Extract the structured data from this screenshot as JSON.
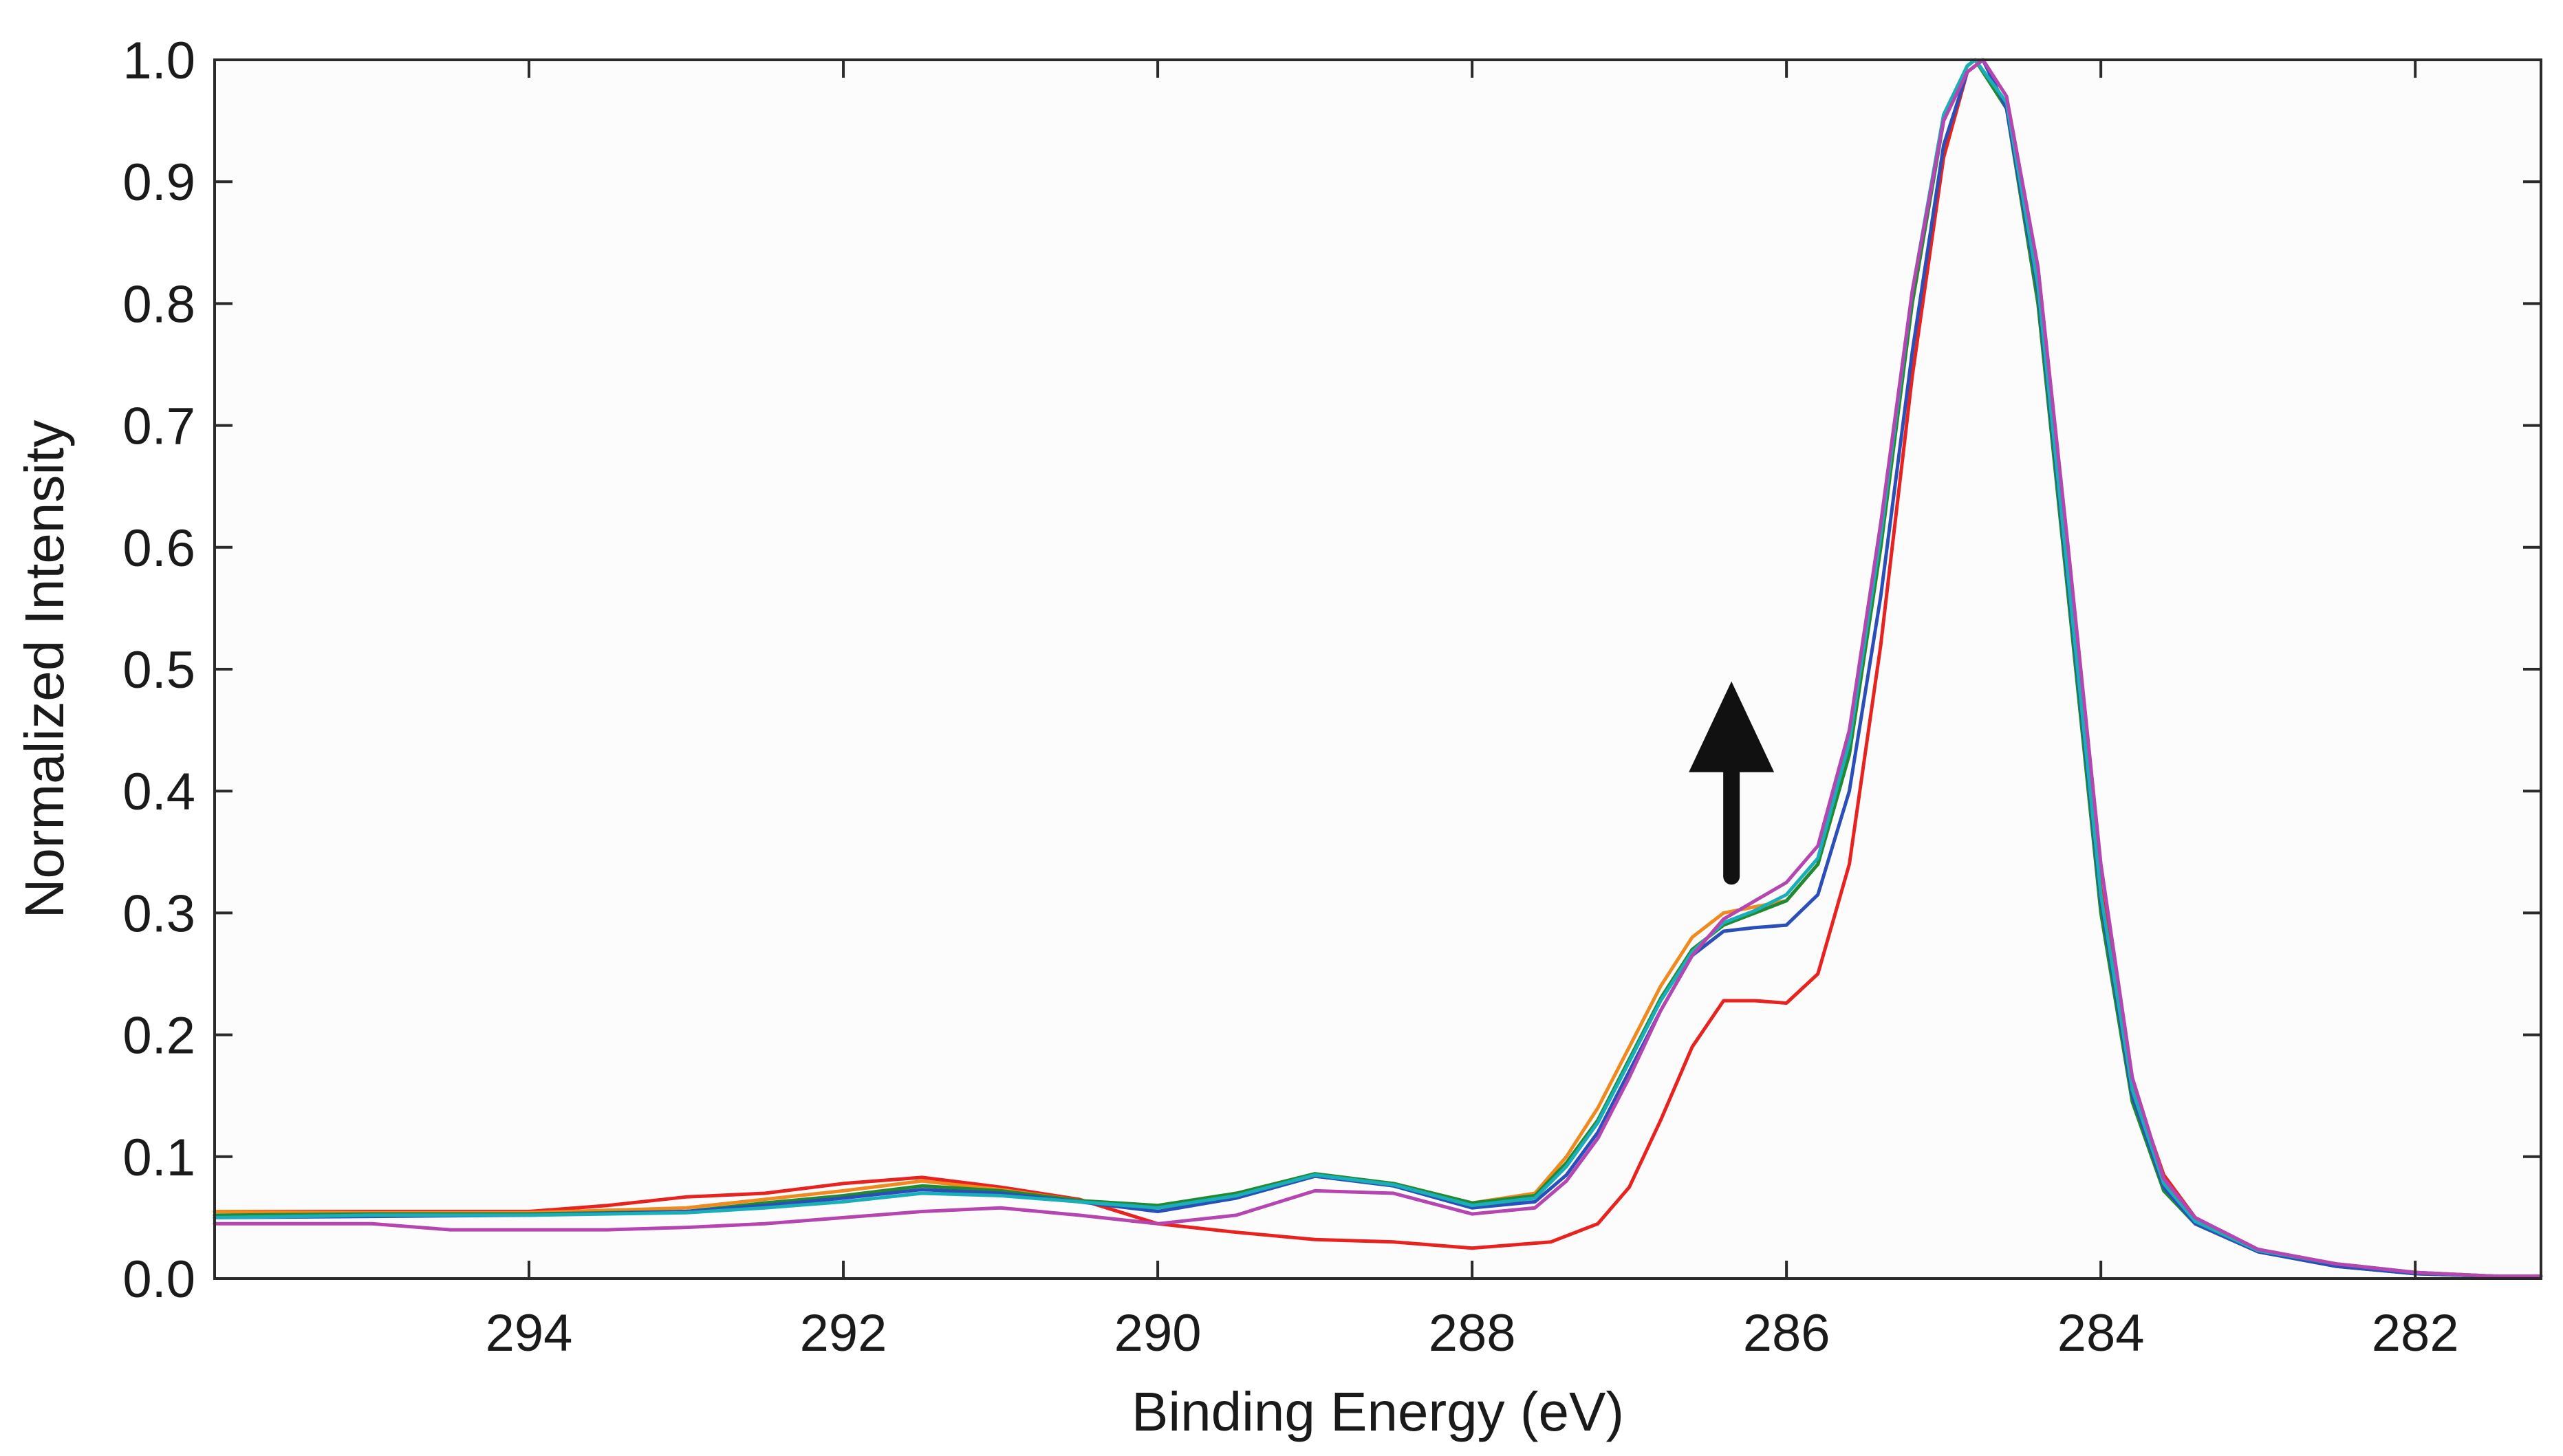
{
  "chart_data": {
    "type": "line",
    "title": "",
    "xlabel": "Binding Energy (eV)",
    "ylabel": "Normalized Intensity",
    "xlim": [
      296.0,
      281.2
    ],
    "ylim": [
      0.0,
      1.0
    ],
    "x_reversed": true,
    "grid": false,
    "legend": "none",
    "xticks": [
      294,
      292,
      290,
      288,
      286,
      284,
      282
    ],
    "xtick_labels": [
      "294",
      "292",
      "290",
      "288",
      "286",
      "284",
      "282"
    ],
    "yticks": [
      0.0,
      0.1,
      0.2,
      0.3,
      0.4,
      0.5,
      0.6,
      0.7,
      0.8,
      0.9,
      1.0
    ],
    "ytick_labels": [
      "0.0",
      "0.1",
      "0.2",
      "0.3",
      "0.4",
      "0.5",
      "0.6",
      "0.7",
      "0.8",
      "0.9",
      "1.0"
    ],
    "annotation": {
      "type": "arrow",
      "direction": "up",
      "x": 286.35,
      "y_from": 0.33,
      "y_to": 0.49
    },
    "series": [
      {
        "name": "red",
        "color": "#e8231f",
        "points": [
          [
            296.0,
            0.055
          ],
          [
            295,
            0.055
          ],
          [
            294,
            0.055
          ],
          [
            293.5,
            0.06
          ],
          [
            293,
            0.067
          ],
          [
            292.5,
            0.07
          ],
          [
            292,
            0.078
          ],
          [
            291.5,
            0.083
          ],
          [
            291,
            0.075
          ],
          [
            290.5,
            0.065
          ],
          [
            290,
            0.045
          ],
          [
            289.5,
            0.038
          ],
          [
            289,
            0.032
          ],
          [
            288.5,
            0.03
          ],
          [
            288.0,
            0.025
          ],
          [
            287.5,
            0.03
          ],
          [
            287.2,
            0.045
          ],
          [
            287.0,
            0.075
          ],
          [
            286.8,
            0.13
          ],
          [
            286.6,
            0.19
          ],
          [
            286.4,
            0.228
          ],
          [
            286.2,
            0.228
          ],
          [
            286.0,
            0.226
          ],
          [
            285.8,
            0.25
          ],
          [
            285.6,
            0.34
          ],
          [
            285.4,
            0.52
          ],
          [
            285.2,
            0.74
          ],
          [
            285.0,
            0.92
          ],
          [
            284.85,
            0.99
          ],
          [
            284.75,
            1.0
          ],
          [
            284.6,
            0.96
          ],
          [
            284.4,
            0.8
          ],
          [
            284.2,
            0.56
          ],
          [
            284.0,
            0.32
          ],
          [
            283.8,
            0.16
          ],
          [
            283.6,
            0.085
          ],
          [
            283.4,
            0.05
          ],
          [
            283.0,
            0.022
          ],
          [
            282.5,
            0.012
          ],
          [
            282.0,
            0.005
          ],
          [
            281.5,
            0.002
          ],
          [
            281.2,
            0.002
          ]
        ]
      },
      {
        "name": "orange",
        "color": "#f08a1e",
        "points": [
          [
            296.0,
            0.055
          ],
          [
            295,
            0.054
          ],
          [
            294,
            0.054
          ],
          [
            293,
            0.058
          ],
          [
            292.5,
            0.065
          ],
          [
            292,
            0.072
          ],
          [
            291.5,
            0.08
          ],
          [
            291,
            0.073
          ],
          [
            290.5,
            0.064
          ],
          [
            290,
            0.058
          ],
          [
            289.5,
            0.068
          ],
          [
            289,
            0.084
          ],
          [
            288.5,
            0.078
          ],
          [
            288.0,
            0.062
          ],
          [
            287.6,
            0.07
          ],
          [
            287.4,
            0.1
          ],
          [
            287.2,
            0.14
          ],
          [
            287.0,
            0.19
          ],
          [
            286.8,
            0.24
          ],
          [
            286.6,
            0.28
          ],
          [
            286.4,
            0.3
          ],
          [
            286.2,
            0.305
          ],
          [
            286.0,
            0.31
          ],
          [
            285.8,
            0.34
          ],
          [
            285.6,
            0.43
          ],
          [
            285.4,
            0.6
          ],
          [
            285.2,
            0.8
          ],
          [
            285.0,
            0.95
          ],
          [
            284.85,
            0.995
          ],
          [
            284.8,
            1.0
          ],
          [
            284.6,
            0.96
          ],
          [
            284.4,
            0.81
          ],
          [
            284.2,
            0.56
          ],
          [
            284.0,
            0.31
          ],
          [
            283.8,
            0.15
          ],
          [
            283.6,
            0.075
          ],
          [
            283.4,
            0.045
          ],
          [
            283.0,
            0.022
          ],
          [
            282.5,
            0.01
          ],
          [
            282.0,
            0.004
          ],
          [
            281.5,
            0.002
          ],
          [
            281.2,
            0.002
          ]
        ]
      },
      {
        "name": "green",
        "color": "#1f8a32",
        "points": [
          [
            296.0,
            0.052
          ],
          [
            295,
            0.053
          ],
          [
            294,
            0.053
          ],
          [
            293,
            0.055
          ],
          [
            292.5,
            0.062
          ],
          [
            292,
            0.068
          ],
          [
            291.5,
            0.076
          ],
          [
            291,
            0.072
          ],
          [
            290.5,
            0.064
          ],
          [
            290,
            0.06
          ],
          [
            289.5,
            0.07
          ],
          [
            289,
            0.086
          ],
          [
            288.5,
            0.078
          ],
          [
            288.0,
            0.062
          ],
          [
            287.6,
            0.068
          ],
          [
            287.4,
            0.095
          ],
          [
            287.2,
            0.13
          ],
          [
            287.0,
            0.18
          ],
          [
            286.8,
            0.23
          ],
          [
            286.6,
            0.27
          ],
          [
            286.4,
            0.29
          ],
          [
            286.2,
            0.3
          ],
          [
            286.0,
            0.31
          ],
          [
            285.8,
            0.34
          ],
          [
            285.6,
            0.43
          ],
          [
            285.4,
            0.6
          ],
          [
            285.2,
            0.8
          ],
          [
            285.0,
            0.95
          ],
          [
            284.85,
            0.995
          ],
          [
            284.8,
            1.0
          ],
          [
            284.6,
            0.96
          ],
          [
            284.4,
            0.8
          ],
          [
            284.2,
            0.55
          ],
          [
            284.0,
            0.3
          ],
          [
            283.8,
            0.145
          ],
          [
            283.6,
            0.072
          ],
          [
            283.4,
            0.045
          ],
          [
            283.0,
            0.022
          ],
          [
            282.5,
            0.01
          ],
          [
            282.0,
            0.004
          ],
          [
            281.5,
            0.002
          ],
          [
            281.2,
            0.002
          ]
        ]
      },
      {
        "name": "blue",
        "color": "#2a4fb8",
        "points": [
          [
            296.0,
            0.05
          ],
          [
            295,
            0.051
          ],
          [
            294,
            0.052
          ],
          [
            293,
            0.055
          ],
          [
            292.5,
            0.06
          ],
          [
            292,
            0.066
          ],
          [
            291.5,
            0.073
          ],
          [
            291,
            0.07
          ],
          [
            290.5,
            0.063
          ],
          [
            290,
            0.055
          ],
          [
            289.5,
            0.066
          ],
          [
            289,
            0.084
          ],
          [
            288.5,
            0.076
          ],
          [
            288.0,
            0.058
          ],
          [
            287.6,
            0.063
          ],
          [
            287.4,
            0.085
          ],
          [
            287.2,
            0.12
          ],
          [
            287.0,
            0.17
          ],
          [
            286.8,
            0.22
          ],
          [
            286.6,
            0.265
          ],
          [
            286.4,
            0.285
          ],
          [
            286.2,
            0.288
          ],
          [
            286.0,
            0.29
          ],
          [
            285.8,
            0.315
          ],
          [
            285.6,
            0.4
          ],
          [
            285.4,
            0.56
          ],
          [
            285.2,
            0.76
          ],
          [
            285.0,
            0.93
          ],
          [
            284.85,
            0.99
          ],
          [
            284.75,
            1.0
          ],
          [
            284.6,
            0.96
          ],
          [
            284.4,
            0.81
          ],
          [
            284.2,
            0.56
          ],
          [
            284.0,
            0.31
          ],
          [
            283.8,
            0.15
          ],
          [
            283.6,
            0.075
          ],
          [
            283.4,
            0.045
          ],
          [
            283.0,
            0.022
          ],
          [
            282.5,
            0.01
          ],
          [
            282.0,
            0.004
          ],
          [
            281.5,
            0.002
          ],
          [
            281.2,
            0.002
          ]
        ]
      },
      {
        "name": "teal",
        "color": "#1aaeb8",
        "points": [
          [
            296.0,
            0.05
          ],
          [
            295,
            0.052
          ],
          [
            294,
            0.052
          ],
          [
            293,
            0.054
          ],
          [
            292.5,
            0.058
          ],
          [
            292,
            0.063
          ],
          [
            291.5,
            0.07
          ],
          [
            291,
            0.068
          ],
          [
            290.5,
            0.063
          ],
          [
            290,
            0.058
          ],
          [
            289.5,
            0.068
          ],
          [
            289,
            0.085
          ],
          [
            288.5,
            0.077
          ],
          [
            288.0,
            0.06
          ],
          [
            287.6,
            0.066
          ],
          [
            287.4,
            0.092
          ],
          [
            287.2,
            0.128
          ],
          [
            287.0,
            0.178
          ],
          [
            286.8,
            0.228
          ],
          [
            286.6,
            0.268
          ],
          [
            286.4,
            0.292
          ],
          [
            286.2,
            0.302
          ],
          [
            286.0,
            0.315
          ],
          [
            285.8,
            0.345
          ],
          [
            285.6,
            0.44
          ],
          [
            285.4,
            0.61
          ],
          [
            285.2,
            0.81
          ],
          [
            285.0,
            0.955
          ],
          [
            284.85,
            0.995
          ],
          [
            284.8,
            1.0
          ],
          [
            284.6,
            0.965
          ],
          [
            284.4,
            0.815
          ],
          [
            284.2,
            0.565
          ],
          [
            284.0,
            0.315
          ],
          [
            283.8,
            0.155
          ],
          [
            283.6,
            0.078
          ],
          [
            283.4,
            0.047
          ],
          [
            283.0,
            0.023
          ],
          [
            282.5,
            0.012
          ],
          [
            282.0,
            0.005
          ],
          [
            281.5,
            0.002
          ],
          [
            281.2,
            0.002
          ]
        ]
      },
      {
        "name": "magenta",
        "color": "#b545b0",
        "points": [
          [
            296.0,
            0.045
          ],
          [
            295,
            0.045
          ],
          [
            294.5,
            0.04
          ],
          [
            294,
            0.04
          ],
          [
            293.5,
            0.04
          ],
          [
            293,
            0.042
          ],
          [
            292.5,
            0.045
          ],
          [
            292,
            0.05
          ],
          [
            291.5,
            0.055
          ],
          [
            291,
            0.058
          ],
          [
            290.5,
            0.052
          ],
          [
            290,
            0.045
          ],
          [
            289.5,
            0.052
          ],
          [
            289,
            0.072
          ],
          [
            288.5,
            0.07
          ],
          [
            288.0,
            0.053
          ],
          [
            287.6,
            0.058
          ],
          [
            287.4,
            0.08
          ],
          [
            287.2,
            0.115
          ],
          [
            287.0,
            0.165
          ],
          [
            286.8,
            0.22
          ],
          [
            286.6,
            0.265
          ],
          [
            286.4,
            0.295
          ],
          [
            286.2,
            0.31
          ],
          [
            286.0,
            0.325
          ],
          [
            285.8,
            0.355
          ],
          [
            285.6,
            0.45
          ],
          [
            285.4,
            0.62
          ],
          [
            285.2,
            0.81
          ],
          [
            285.0,
            0.95
          ],
          [
            284.85,
            0.99
          ],
          [
            284.75,
            1.0
          ],
          [
            284.6,
            0.97
          ],
          [
            284.4,
            0.83
          ],
          [
            284.2,
            0.59
          ],
          [
            284.0,
            0.34
          ],
          [
            283.8,
            0.165
          ],
          [
            283.6,
            0.082
          ],
          [
            283.4,
            0.05
          ],
          [
            283.0,
            0.024
          ],
          [
            282.5,
            0.012
          ],
          [
            282.0,
            0.005
          ],
          [
            281.5,
            0.002
          ],
          [
            281.2,
            0.002
          ]
        ]
      }
    ]
  }
}
